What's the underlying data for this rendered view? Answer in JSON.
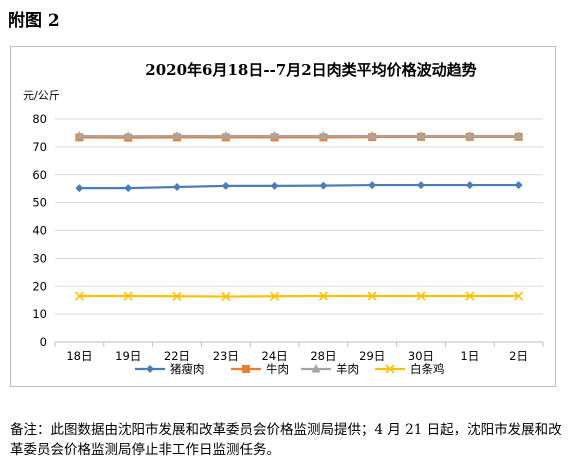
{
  "figure_label": "附图 2",
  "note": "备注：此图数据由沈阳市发展和改革委员会价格监测局提供；4 月 21 日起，沈阳市发展和改革委员会价格监测局停止非工作日监测任务。",
  "chart_data": {
    "type": "line",
    "title": "2020年6月18日--7月2日肉类平均价格波动趋势",
    "ylabel": "元/公斤",
    "xlabel": "",
    "ylim": [
      0,
      80
    ],
    "yticks": [
      0,
      10,
      20,
      30,
      40,
      50,
      60,
      70,
      80
    ],
    "grid": true,
    "legend_position": "bottom",
    "categories": [
      "18日",
      "19日",
      "22日",
      "23日",
      "24日",
      "28日",
      "29日",
      "30日",
      "1日",
      "2日"
    ],
    "series": [
      {
        "name": "猪瘦肉",
        "color": "#4a7ebb",
        "marker": "diamond",
        "values": [
          55.2,
          55.2,
          55.6,
          56.0,
          56.0,
          56.1,
          56.3,
          56.3,
          56.3,
          56.3
        ]
      },
      {
        "name": "牛肉",
        "color": "#ed7d31",
        "marker": "square",
        "values": [
          73.4,
          73.3,
          73.4,
          73.4,
          73.4,
          73.4,
          73.5,
          73.6,
          73.6,
          73.6
        ]
      },
      {
        "name": "羊肉",
        "color": "#a5a5a5",
        "marker": "triangle",
        "values": [
          73.9,
          73.8,
          73.9,
          73.9,
          73.9,
          73.9,
          73.9,
          73.9,
          73.9,
          73.9
        ]
      },
      {
        "name": "白条鸡",
        "color": "#ffc000",
        "marker": "x",
        "values": [
          16.5,
          16.5,
          16.4,
          16.3,
          16.4,
          16.5,
          16.5,
          16.5,
          16.5,
          16.5
        ]
      }
    ]
  }
}
